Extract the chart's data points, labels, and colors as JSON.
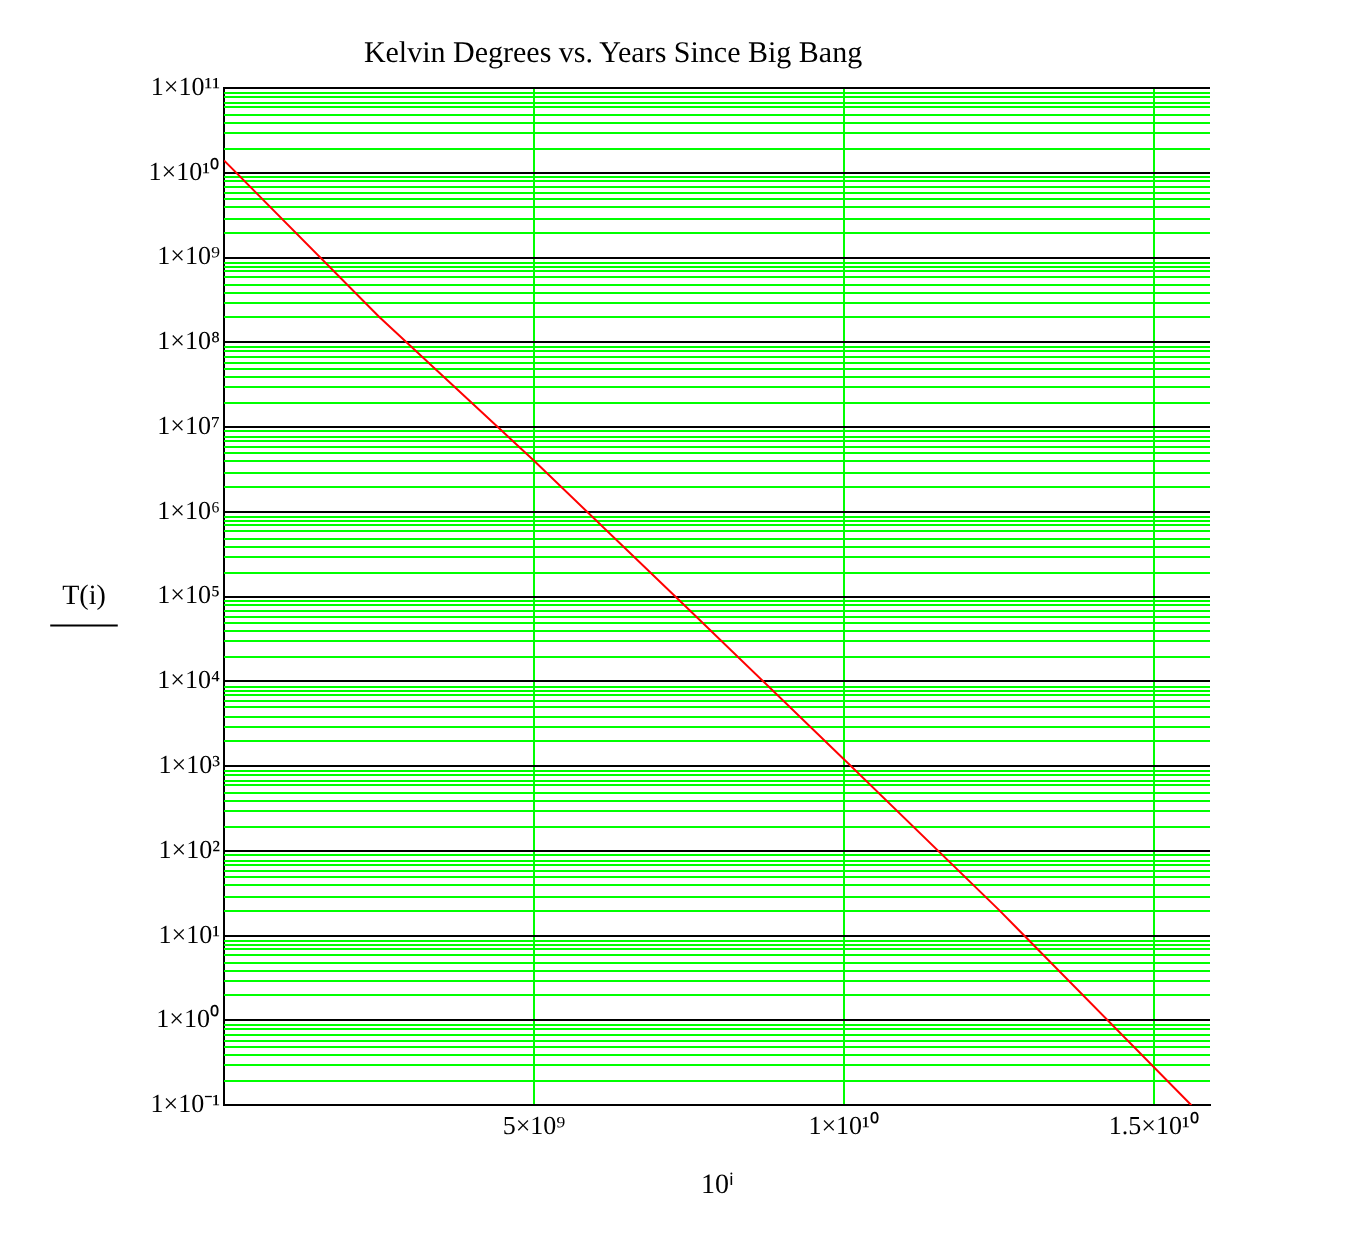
{
  "chart_data": {
    "type": "line",
    "title": "Kelvin Degrees vs. Years Since Big Bang",
    "xlabel": "10ⁱ",
    "ylabel": "T(i)",
    "x": [
      0,
      2500000000,
      5000000000,
      7500000000,
      10000000000,
      12500000000,
      15600000000
    ],
    "series": [
      {
        "color": "#ff0000",
        "values": [
          14000000000,
          200000000,
          4000000,
          70000,
          1200,
          20,
          0.1
        ]
      }
    ],
    "xlim": [
      0,
      15900000000
    ],
    "xticks": [
      {
        "value": 5000000000,
        "label": "5×10⁹"
      },
      {
        "value": 10000000000,
        "label": "1×10¹⁰"
      },
      {
        "value": 15000000000,
        "label": "1.5×10¹⁰"
      }
    ],
    "ylim": [
      0.1,
      100000000000
    ],
    "log": "y",
    "yticks": [
      {
        "value": 0.1,
        "label": "1×10⁻¹"
      },
      {
        "value": 1,
        "label": "1×10⁰"
      },
      {
        "value": 10,
        "label": "1×10¹"
      },
      {
        "value": 100,
        "label": "1×10²"
      },
      {
        "value": 1000,
        "label": "1×10³"
      },
      {
        "value": 10000,
        "label": "1×10⁴"
      },
      {
        "value": 100000,
        "label": "1×10⁵"
      },
      {
        "value": 1000000,
        "label": "1×10⁶"
      },
      {
        "value": 10000000,
        "label": "1×10⁷"
      },
      {
        "value": 100000000,
        "label": "1×10⁸"
      },
      {
        "value": 1000000000,
        "label": "1×10⁹"
      },
      {
        "value": 10000000000,
        "label": "1×10¹⁰"
      },
      {
        "value": 100000000000,
        "label": "1×10¹¹"
      }
    ],
    "grid": true,
    "legend": false,
    "marker": "none",
    "line_style": "solid"
  }
}
